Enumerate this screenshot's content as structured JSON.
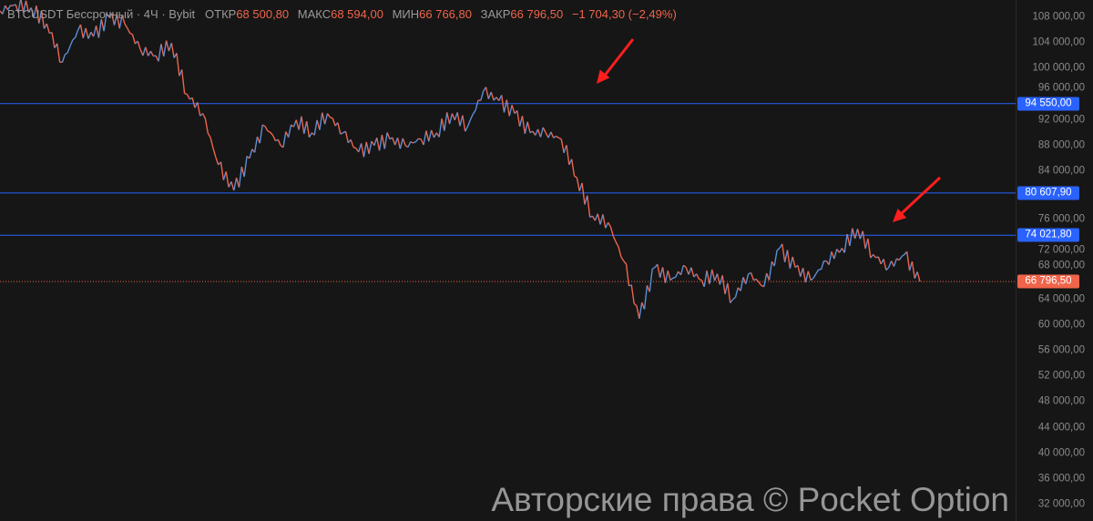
{
  "legend": {
    "symbol": "BTCUSDT Бессрочный · 4Ч · Bybit",
    "open_label": "ОТКР",
    "open": "68 500,80",
    "high_label": "МАКС",
    "high": "68 594,00",
    "low_label": "МИН",
    "low": "66 766,80",
    "close_label": "ЗАКР",
    "close": "66 796,50",
    "change": "−1 704,30 (−2,49%)"
  },
  "watermark": "Авторские права © Pocket Option",
  "colors": {
    "up": "#5b8fd6",
    "down": "#f0644a",
    "level": "#2962ff",
    "last": "#f0644a",
    "arrow": "#ff1e1e"
  },
  "chart_data": {
    "type": "line",
    "title": "",
    "ylim": [
      32000,
      110700
    ],
    "y_ticks": [
      "108 000,00",
      "104 000,00",
      "100 000,00",
      "96 000,00",
      "92 000,00",
      "88 000,00",
      "84 000,00",
      "76 000,00",
      "72 000,00",
      "68 000,00",
      "64 000,00",
      "60 000,00",
      "56 000,00",
      "52 000,00",
      "48 000,00",
      "44 000,00",
      "40 000,00",
      "36 000,00",
      "32 000,00"
    ],
    "y_tick_values": [
      108000,
      104000,
      100000,
      96000,
      92000,
      88000,
      84000,
      76000,
      72000,
      68000,
      64000,
      60000,
      56000,
      52000,
      48000,
      44000,
      40000,
      36000,
      32000
    ],
    "closes": [
      109000,
      110000,
      109500,
      107000,
      101000,
      106000,
      105000,
      108000,
      107000,
      103000,
      102000,
      104000,
      96000,
      93000,
      85000,
      81000,
      86000,
      91000,
      88000,
      92000,
      90000,
      93000,
      90000,
      87000,
      88000,
      89000,
      88000,
      89000,
      90000,
      93000,
      91000,
      96500,
      95000,
      93000,
      90000,
      90000,
      89000,
      83000,
      77000,
      76000,
      70000,
      61000,
      69000,
      67000,
      69000,
      67000,
      68000,
      64000,
      68000,
      66000,
      72000,
      69000,
      67000,
      70000,
      72000,
      75000,
      71000,
      69000,
      71000,
      66796.5
    ],
    "levels": [
      {
        "value": 94550,
        "label": "94 550,00"
      },
      {
        "value": 80607.9,
        "label": "80 607,90"
      },
      {
        "value": 74021.8,
        "label": "74 021,80"
      }
    ],
    "last_price": {
      "value": 66796.5,
      "label": "66 796,50"
    }
  }
}
